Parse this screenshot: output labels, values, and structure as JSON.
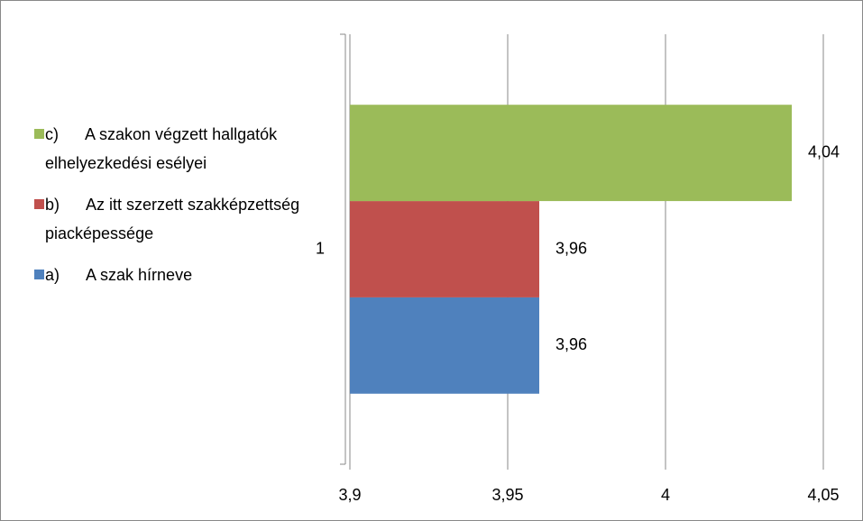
{
  "chart_data": {
    "type": "bar",
    "orientation": "horizontal",
    "categories": [
      "1"
    ],
    "series": [
      {
        "name": "a)      A szak hírneve",
        "color": "#4f81bd",
        "values": [
          3.96
        ],
        "value_labels": [
          "3,96"
        ]
      },
      {
        "name": "b)      Az itt szerzett szakképzettség piacképessége",
        "color": "#c0504d",
        "values": [
          3.96
        ],
        "value_labels": [
          "3,96"
        ]
      },
      {
        "name": "c)      A szakon végzett hallgatók elhelyezkedési esélyei",
        "color": "#9bbb59",
        "values": [
          4.04
        ],
        "value_labels": [
          "4,04"
        ]
      }
    ],
    "xlim": [
      3.9,
      4.05
    ],
    "xticks": [
      {
        "value": 3.9,
        "label": "3,9"
      },
      {
        "value": 3.95,
        "label": "3,95"
      },
      4,
      {
        "value": 4.05,
        "label": "4,05"
      }
    ],
    "grid": true,
    "legend": "left"
  }
}
